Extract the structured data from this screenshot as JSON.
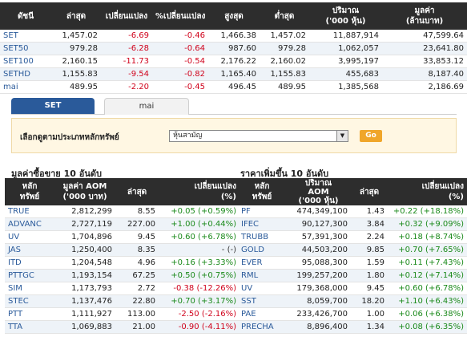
{
  "index_table": {
    "headers": {
      "index": "ดัชนี",
      "last": "ล่าสุด",
      "change": "เปลี่ยนแปลง",
      "pct_change": "%เปลี่ยนแปลง",
      "high": "สูงสุด",
      "low": "ต่ำสุด",
      "volume_l1": "ปริมาณ",
      "volume_l2": "('000 หุ้น)",
      "value_l1": "มูลค่า",
      "value_l2": "(ล้านบาท)"
    },
    "rows": [
      {
        "name": "SET",
        "last": "1,457.02",
        "change": "-6.69",
        "pct": "-0.46",
        "high": "1,466.38",
        "low": "1,457.02",
        "volume": "11,887,914",
        "value": "47,599.64"
      },
      {
        "name": "SET50",
        "last": "979.28",
        "change": "-6.28",
        "pct": "-0.64",
        "high": "987.60",
        "low": "979.28",
        "volume": "1,062,057",
        "value": "23,641.80"
      },
      {
        "name": "SET100",
        "last": "2,160.15",
        "change": "-11.73",
        "pct": "-0.54",
        "high": "2,176.22",
        "low": "2,160.02",
        "volume": "3,995,197",
        "value": "33,853.12"
      },
      {
        "name": "SETHD",
        "last": "1,155.83",
        "change": "-9.54",
        "pct": "-0.82",
        "high": "1,165.40",
        "low": "1,155.83",
        "volume": "455,683",
        "value": "8,187.40"
      },
      {
        "name": "mai",
        "last": "489.95",
        "change": "-2.20",
        "pct": "-0.45",
        "high": "496.45",
        "low": "489.95",
        "volume": "1,385,568",
        "value": "2,186.69"
      }
    ]
  },
  "tabs": {
    "set": "SET",
    "mai": "mai"
  },
  "filter": {
    "label": "เลือกดูตามประเภทหลักทรัพย์",
    "selected": "หุ้นสามัญ",
    "go": "Go"
  },
  "left_section": {
    "title": "มูลค่าซื้อขาย 10 อันดับ",
    "headers": {
      "sym_l1": "หลัก",
      "sym_l2": "ทรัพย์",
      "aom_l1": "มูลค่า AOM",
      "aom_l2": "('000 บาท)",
      "last": "ล่าสุด",
      "chg_l1": "เปลี่ยนแปลง",
      "chg_l2": "(%)"
    },
    "rows": [
      {
        "sym": "TRUE",
        "aom": "2,812,299",
        "last": "8.55",
        "chg": "+0.05 (+0.59%)",
        "dir": "pos"
      },
      {
        "sym": "ADVANC",
        "aom": "2,727,119",
        "last": "227.00",
        "chg": "+1.00 (+0.44%)",
        "dir": "pos"
      },
      {
        "sym": "UV",
        "aom": "1,704,896",
        "last": "9.45",
        "chg": "+0.60 (+6.78%)",
        "dir": "pos"
      },
      {
        "sym": "JAS",
        "aom": "1,250,400",
        "last": "8.35",
        "chg": "- (-)",
        "dir": "flat"
      },
      {
        "sym": "ITD",
        "aom": "1,204,548",
        "last": "4.96",
        "chg": "+0.16 (+3.33%)",
        "dir": "pos"
      },
      {
        "sym": "PTTGC",
        "aom": "1,193,154",
        "last": "67.25",
        "chg": "+0.50 (+0.75%)",
        "dir": "pos"
      },
      {
        "sym": "SIM",
        "aom": "1,173,793",
        "last": "2.72",
        "chg": "-0.38 (-12.26%)",
        "dir": "neg"
      },
      {
        "sym": "STEC",
        "aom": "1,137,476",
        "last": "22.80",
        "chg": "+0.70 (+3.17%)",
        "dir": "pos"
      },
      {
        "sym": "PTT",
        "aom": "1,111,927",
        "last": "113.00",
        "chg": "-2.50 (-2.16%)",
        "dir": "neg"
      },
      {
        "sym": "TTA",
        "aom": "1,069,883",
        "last": "21.00",
        "chg": "-0.90 (-4.11%)",
        "dir": "neg"
      }
    ]
  },
  "right_section": {
    "title": "ราคาเพิ่มขึ้น 10 อันดับ",
    "headers": {
      "sym_l1": "หลัก",
      "sym_l2": "ทรัพย์",
      "vol_l1": "ปริมาณ",
      "vol_l2": "AOM",
      "vol_l3": "('000 หุ้น)",
      "last": "ล่าสุด",
      "chg_l1": "เปลี่ยนแปลง",
      "chg_l2": "(%)"
    },
    "rows": [
      {
        "sym": "PF",
        "vol": "474,349,100",
        "last": "1.43",
        "chg": "+0.22 (+18.18%)"
      },
      {
        "sym": "IFEC",
        "vol": "90,127,300",
        "last": "3.84",
        "chg": "+0.32 (+9.09%)"
      },
      {
        "sym": "TRUBB",
        "vol": "57,391,300",
        "last": "2.24",
        "chg": "+0.18 (+8.74%)"
      },
      {
        "sym": "GOLD",
        "vol": "44,503,200",
        "last": "9.85",
        "chg": "+0.70 (+7.65%)"
      },
      {
        "sym": "EVER",
        "vol": "95,088,300",
        "last": "1.59",
        "chg": "+0.11 (+7.43%)"
      },
      {
        "sym": "RML",
        "vol": "199,257,200",
        "last": "1.80",
        "chg": "+0.12 (+7.14%)"
      },
      {
        "sym": "UV",
        "vol": "179,368,000",
        "last": "9.45",
        "chg": "+0.60 (+6.78%)"
      },
      {
        "sym": "SST",
        "vol": "8,059,700",
        "last": "18.20",
        "chg": "+1.10 (+6.43%)"
      },
      {
        "sym": "PAE",
        "vol": "233,426,700",
        "last": "1.00",
        "chg": "+0.06 (+6.38%)"
      },
      {
        "sym": "PRECHA",
        "vol": "8,896,400",
        "last": "1.34",
        "chg": "+0.08 (+6.35%)"
      }
    ]
  }
}
